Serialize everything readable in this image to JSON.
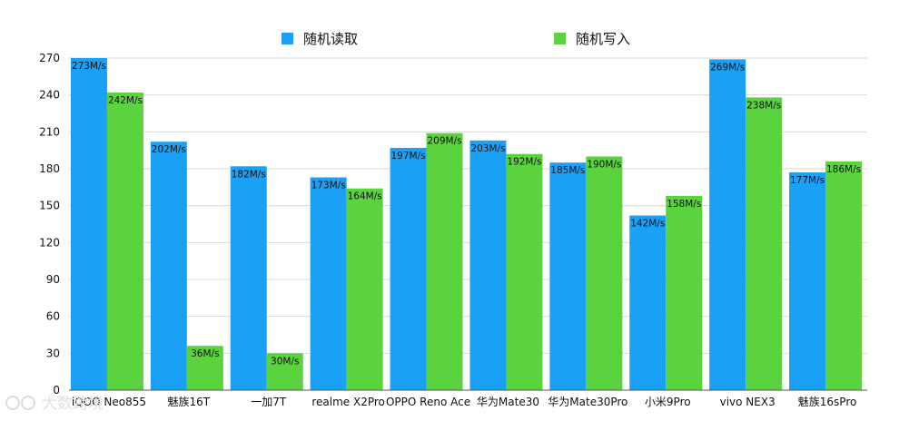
{
  "chart_data": {
    "type": "bar",
    "title": "",
    "xlabel": "",
    "ylabel": "",
    "ylim": [
      0,
      270
    ],
    "yticks": [
      0,
      30,
      60,
      90,
      120,
      150,
      180,
      210,
      240,
      270
    ],
    "grid": true,
    "legend_position": "top",
    "categories": [
      "iQOO Neo855",
      "魅族16T",
      "一加7T",
      "realme X2Pro",
      "OPPO Reno Ace",
      "华为Mate30",
      "华为Mate30Pro",
      "小米9Pro",
      "vivo NEX3",
      "魅族16sPro"
    ],
    "series": [
      {
        "name": "随机读取",
        "color": "#1aa1f5",
        "values": [
          273,
          202,
          182,
          173,
          197,
          203,
          185,
          142,
          269,
          177
        ],
        "labels": [
          "273M/s",
          "202M/s",
          "182M/s",
          "173M/s",
          "197M/s",
          "203M/s",
          "185M/s",
          "142M/s",
          "269M/s",
          "177M/s"
        ]
      },
      {
        "name": "随机写入",
        "color": "#5bd33f",
        "values": [
          242,
          36,
          30,
          164,
          209,
          192,
          190,
          158,
          238,
          186
        ],
        "labels": [
          "242M/s",
          "36M/s",
          "30M/s",
          "164M/s",
          "209M/s",
          "192M/s",
          "190M/s",
          "158M/s",
          "238M/s",
          "186M/s"
        ]
      }
    ]
  },
  "watermark": {
    "text": "大数跨境"
  }
}
